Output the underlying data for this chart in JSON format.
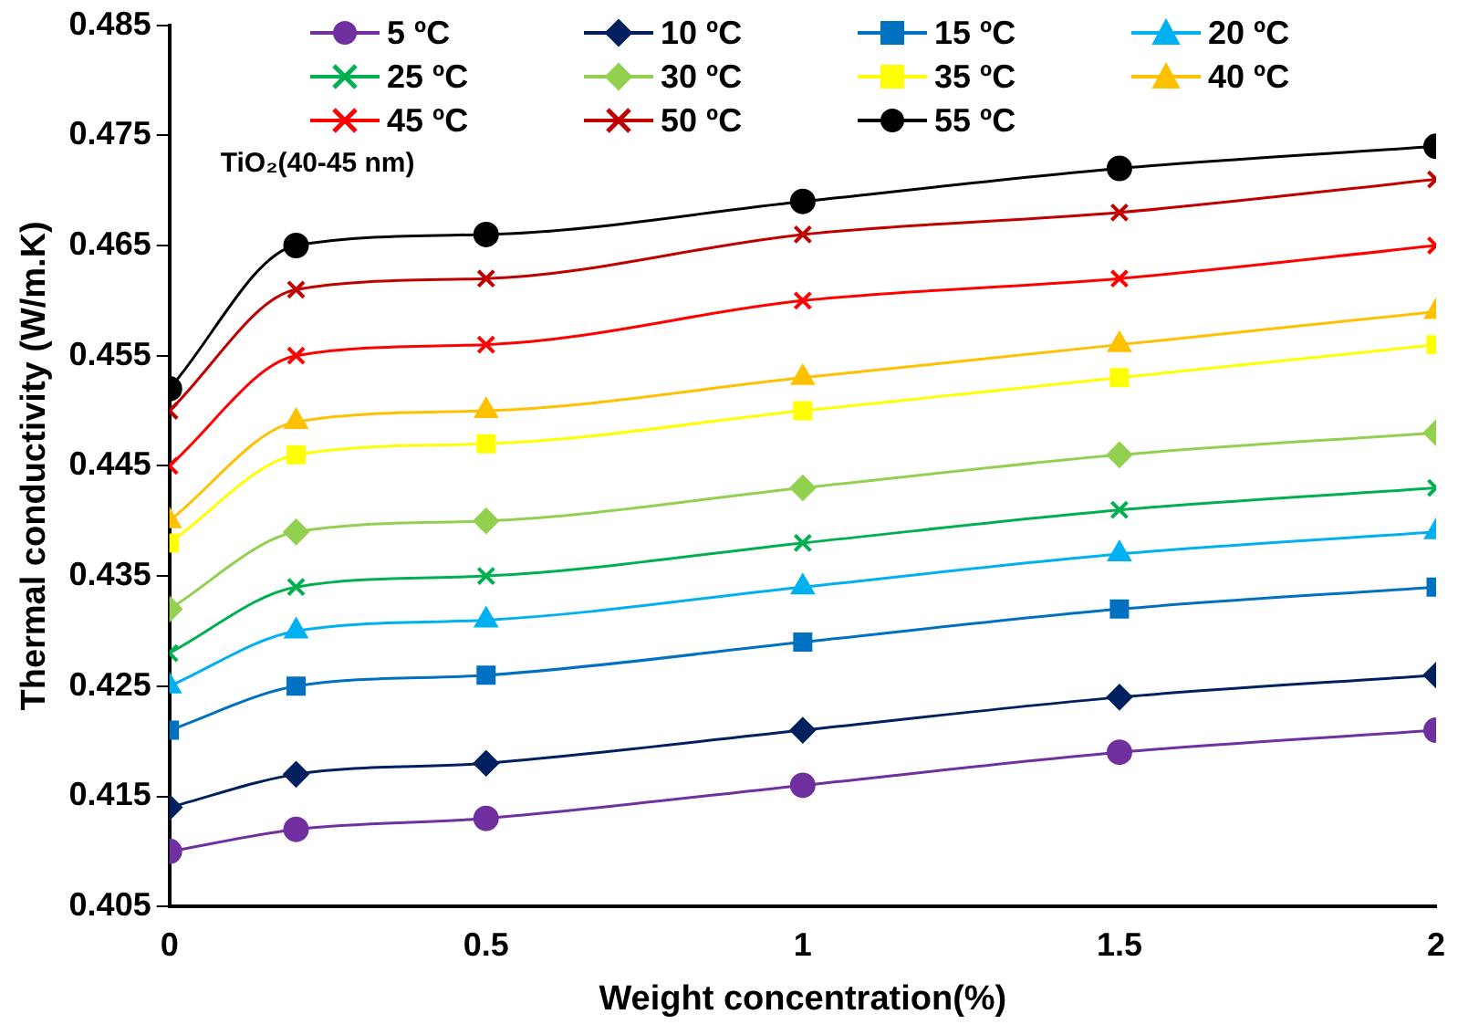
{
  "chart_data": {
    "type": "line",
    "xlabel": "Weight concentration(%)",
    "ylabel": "Thermal conductivity (W/m.K)",
    "annotations": [
      "TiO₂(40-45 nm)"
    ],
    "x": [
      0,
      0.2,
      0.5,
      1,
      1.5,
      2
    ],
    "xlim": [
      0,
      2
    ],
    "xticks": [
      0,
      0.5,
      1,
      1.5,
      2
    ],
    "ylim": [
      0.405,
      0.485
    ],
    "yticks": [
      {
        "value": 0.405,
        "label": "0.405"
      },
      {
        "value": 0.415,
        "label": "0.415"
      },
      {
        "value": 0.425,
        "label": "0.425"
      },
      {
        "value": 0.435,
        "label": "0.435"
      },
      {
        "value": 0.445,
        "label": "0.445"
      },
      {
        "value": 0.455,
        "label": "0.455"
      },
      {
        "value": 0.465,
        "label": "0.465"
      },
      {
        "value": 0.475,
        "label": "0.475"
      },
      {
        "value": 0.485,
        "label": "0.485"
      }
    ],
    "grid": false,
    "legend": "top",
    "series": [
      {
        "name": "5 ºC",
        "color": "#7030a0",
        "marker": "circle",
        "values": [
          0.41,
          0.412,
          0.413,
          0.416,
          0.419,
          0.421
        ]
      },
      {
        "name": "10 ºC",
        "color": "#002060",
        "marker": "diamond",
        "values": [
          0.414,
          0.417,
          0.418,
          0.421,
          0.424,
          0.426
        ]
      },
      {
        "name": "15 ºC",
        "color": "#0070c0",
        "marker": "square",
        "values": [
          0.421,
          0.425,
          0.426,
          0.429,
          0.432,
          0.434
        ]
      },
      {
        "name": "20 ºC",
        "color": "#00b0f0",
        "marker": "triangle",
        "values": [
          0.425,
          0.43,
          0.431,
          0.434,
          0.437,
          0.439
        ]
      },
      {
        "name": "25 ºC",
        "color": "#00b050",
        "marker": "cross",
        "values": [
          0.428,
          0.434,
          0.435,
          0.438,
          0.441,
          0.443
        ]
      },
      {
        "name": "30 ºC",
        "color": "#92d050",
        "marker": "diamond",
        "values": [
          0.432,
          0.439,
          0.44,
          0.443,
          0.446,
          0.448
        ]
      },
      {
        "name": "35 ºC",
        "color": "#ffff00",
        "marker": "square",
        "values": [
          0.438,
          0.446,
          0.447,
          0.45,
          0.453,
          0.456
        ]
      },
      {
        "name": "40 ºC",
        "color": "#ffc000",
        "marker": "triangle",
        "values": [
          0.44,
          0.449,
          0.45,
          0.453,
          0.456,
          0.459
        ]
      },
      {
        "name": "45 ºC",
        "color": "#ff0000",
        "marker": "cross",
        "values": [
          0.445,
          0.455,
          0.456,
          0.46,
          0.462,
          0.465
        ]
      },
      {
        "name": "50 ºC",
        "color": "#c00000",
        "marker": "cross",
        "values": [
          0.45,
          0.461,
          0.462,
          0.466,
          0.468,
          0.471
        ]
      },
      {
        "name": "55 ºC",
        "color": "#000000",
        "marker": "circle",
        "values": [
          0.452,
          0.465,
          0.466,
          0.469,
          0.472,
          0.474
        ]
      }
    ]
  }
}
